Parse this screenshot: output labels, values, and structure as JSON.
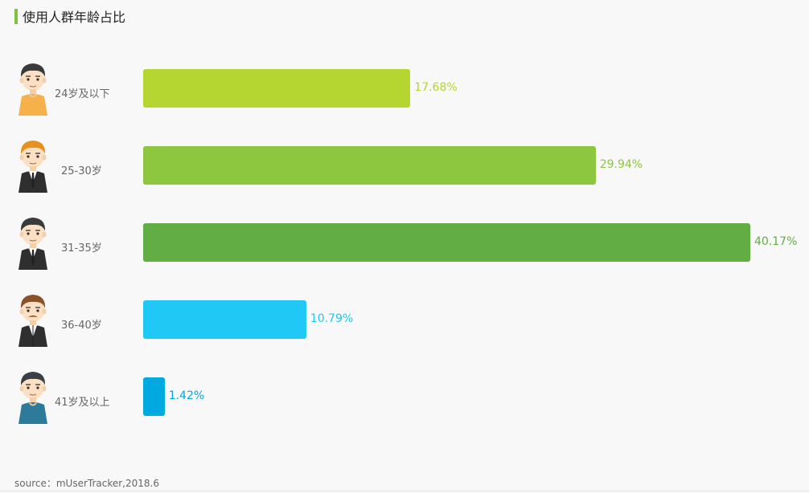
{
  "title": "使用人群年龄占比",
  "source": "source：mUserTracker,2018.6",
  "chart_data": {
    "type": "bar",
    "orientation": "horizontal",
    "categories": [
      "24岁及以下",
      "25-30岁",
      "31-35岁",
      "36-40岁",
      "41岁及以上"
    ],
    "values": [
      17.68,
      29.94,
      40.17,
      10.79,
      1.42
    ],
    "value_labels": [
      "17.68%",
      "29.94%",
      "40.17%",
      "10.79%",
      "1.42%"
    ],
    "bar_colors": [
      "#b5d530",
      "#8dc63f",
      "#63ad45",
      "#1fc8f5",
      "#00a9e0"
    ],
    "avatars": [
      "young-man-orange-shirt-icon",
      "orange-hair-man-suit-icon",
      "dark-hair-man-suit-icon",
      "brown-hair-mustache-man-icon",
      "older-man-blue-shirt-icon"
    ],
    "xlim": [
      0,
      40.17
    ],
    "grid": false,
    "legend": "none"
  }
}
